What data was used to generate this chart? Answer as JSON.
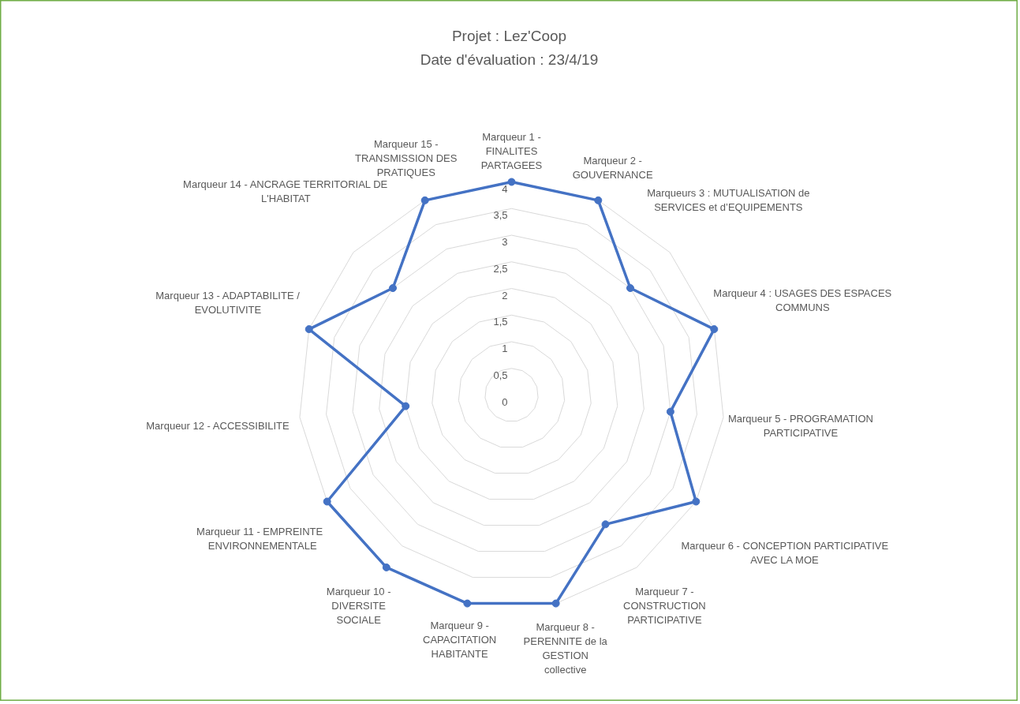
{
  "chart_data": {
    "type": "radar",
    "title": "Projet : Lez'Coop",
    "subtitle": "Date d'évaluation : 23/4/19",
    "categories": [
      "Marqueur 1 - FINALITES PARTAGEES",
      "Marqueur 2 - GOUVERNANCE",
      "Marqueurs 3 : MUTUALISATION de SERVICES et d’EQUIPEMENTS",
      "Marqueur 4 : USAGES DES ESPACES COMMUNS",
      "Marqueur 5 - PROGRAMATION PARTICIPATIVE",
      "Marqueur 6 - CONCEPTION PARTICIPATIVE AVEC LA MOE",
      "Marqueur 7 -  CONSTRUCTION PARTICIPATIVE",
      "Marqueur 8 - PERENNITE de la GESTION collective",
      "Marqueur 9 - CAPACITATION HABITANTE",
      "Marqueur 10 - DIVERSITE SOCIALE",
      "Marqueur  11 -  EMPREINTE ENVIRONNEMENTALE",
      "Marqueur 12 - ACCESSIBILITE",
      "Marqueur 13 - ADAPTABILITE / EVOLUTIVITE",
      "Marqueur 14 - ANCRAGE TERRITORIAL DE L'HABITAT",
      "Marqueur 15 - TRANSMISSION DES PRATIQUES"
    ],
    "series": [
      {
        "color": "#4472c4",
        "values": [
          4,
          4,
          3,
          4,
          3,
          4,
          3,
          4,
          4,
          4,
          4,
          2,
          4,
          3,
          4
        ]
      }
    ],
    "ylim": [
      0,
      4
    ],
    "yticks": [
      0,
      {
        "value": 0.5,
        "label": "0,5"
      },
      1,
      {
        "value": 1.5,
        "label": "1,5"
      },
      2,
      {
        "value": 2.5,
        "label": "2,5"
      },
      3,
      {
        "value": 3.5,
        "label": "3,5"
      },
      4
    ],
    "grid": true,
    "marker": "circle"
  }
}
